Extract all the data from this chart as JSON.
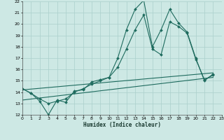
{
  "title": "",
  "xlabel": "Humidex (Indice chaleur)",
  "bg_color": "#cde8e4",
  "grid_color": "#aacfcb",
  "line_color": "#1e6b5e",
  "x_min": 0,
  "x_max": 23,
  "y_min": 12,
  "y_max": 22,
  "x_ticks": [
    0,
    1,
    2,
    3,
    4,
    5,
    6,
    7,
    8,
    9,
    10,
    11,
    12,
    13,
    14,
    15,
    16,
    17,
    18,
    19,
    20,
    21,
    22,
    23
  ],
  "y_ticks": [
    12,
    13,
    14,
    15,
    16,
    17,
    18,
    19,
    20,
    21,
    22
  ],
  "series1_x": [
    0,
    1,
    2,
    3,
    4,
    5,
    6,
    7,
    8,
    9,
    10,
    11,
    12,
    13,
    14,
    15,
    16,
    17,
    18,
    19,
    20,
    21,
    22
  ],
  "series1_y": [
    14.3,
    13.9,
    13.2,
    12.0,
    13.3,
    13.1,
    14.1,
    14.2,
    14.9,
    15.1,
    15.3,
    17.0,
    19.5,
    21.3,
    22.1,
    18.0,
    19.5,
    21.3,
    20.1,
    19.3,
    17.0,
    15.0,
    15.6
  ],
  "series2_x": [
    0,
    1,
    2,
    3,
    4,
    5,
    6,
    7,
    8,
    9,
    10,
    11,
    12,
    13,
    14,
    15,
    16,
    17,
    18,
    19,
    20,
    21,
    22
  ],
  "series2_y": [
    14.3,
    13.9,
    13.4,
    13.0,
    13.2,
    13.4,
    14.0,
    14.3,
    14.7,
    15.0,
    15.3,
    16.2,
    17.8,
    19.5,
    20.8,
    17.8,
    17.3,
    20.2,
    19.8,
    19.2,
    16.9,
    15.1,
    15.5
  ],
  "series3_x": [
    0,
    22
  ],
  "series3_y": [
    13.3,
    15.3
  ],
  "series4_x": [
    0,
    22
  ],
  "series4_y": [
    14.2,
    15.7
  ]
}
